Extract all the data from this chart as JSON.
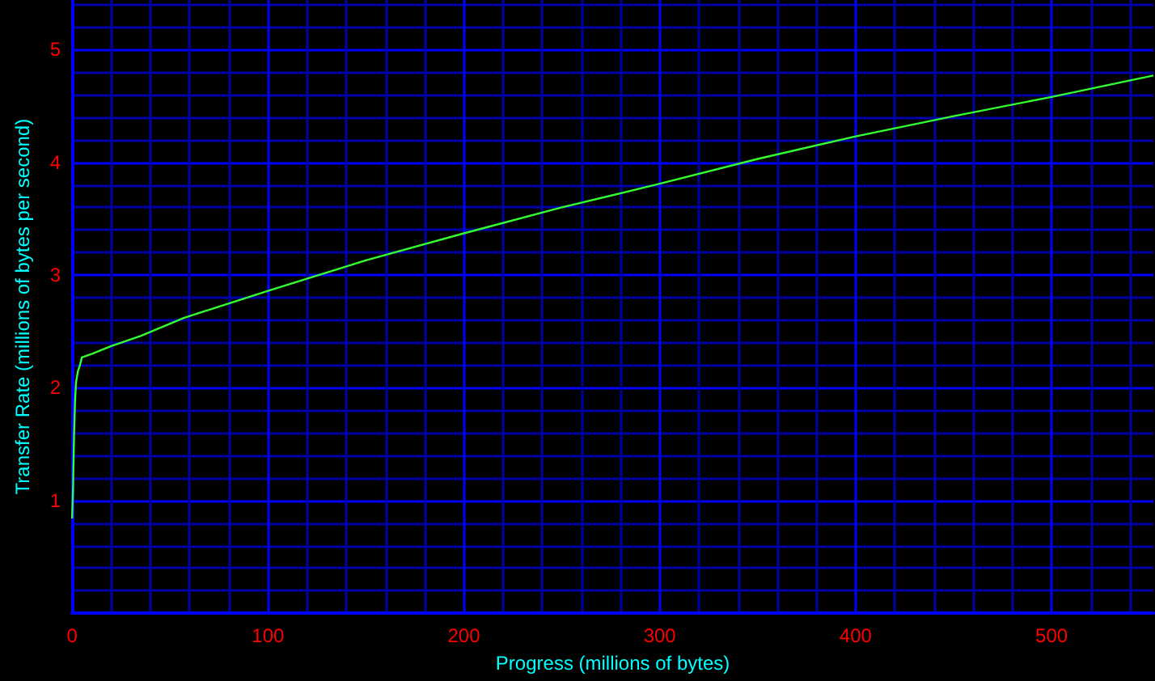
{
  "chart_data": {
    "type": "line",
    "xlabel": "Progress (millions of bytes)",
    "ylabel": "Transfer Rate (millions of bytes per second)",
    "x": [
      0,
      0.5,
      1,
      1.5,
      2,
      3,
      4,
      5,
      10,
      20,
      35,
      57,
      100,
      150,
      200,
      250,
      300,
      350,
      400,
      450,
      500,
      552
    ],
    "series": [
      {
        "color": "#33ff33",
        "values": [
          0.84,
          1.12,
          1.58,
          1.88,
          2.05,
          2.15,
          2.2,
          2.27,
          2.3,
          2.37,
          2.46,
          2.62,
          2.86,
          3.13,
          3.37,
          3.6,
          3.81,
          4.03,
          4.23,
          4.41,
          4.58,
          4.77
        ]
      }
    ],
    "xlim": [
      0,
      552
    ],
    "xticks": [
      0,
      {
        "value": 20,
        "label": null
      },
      {
        "value": 40,
        "label": null
      },
      {
        "value": 60,
        "label": null
      },
      {
        "value": 80,
        "label": null
      },
      100,
      {
        "value": 120,
        "label": null
      },
      {
        "value": 140,
        "label": null
      },
      {
        "value": 160,
        "label": null
      },
      {
        "value": 180,
        "label": null
      },
      200,
      {
        "value": 220,
        "label": null
      },
      {
        "value": 240,
        "label": null
      },
      {
        "value": 260,
        "label": null
      },
      {
        "value": 280,
        "label": null
      },
      300,
      {
        "value": 320,
        "label": null
      },
      {
        "value": 340,
        "label": null
      },
      {
        "value": 360,
        "label": null
      },
      {
        "value": 380,
        "label": null
      },
      400,
      {
        "value": 420,
        "label": null
      },
      {
        "value": 440,
        "label": null
      },
      {
        "value": 460,
        "label": null
      },
      {
        "value": 480,
        "label": null
      },
      500,
      {
        "value": 520,
        "label": null
      },
      {
        "value": 540,
        "label": null
      }
    ],
    "ylim": [
      0,
      5.44
    ],
    "yticks": [
      {
        "value": 0,
        "label": null
      },
      {
        "value": 0.2,
        "label": null
      },
      {
        "value": 0.4,
        "label": null
      },
      {
        "value": 0.6,
        "label": null
      },
      {
        "value": 0.8,
        "label": null
      },
      1,
      {
        "value": 1.2,
        "label": null
      },
      {
        "value": 1.4,
        "label": null
      },
      {
        "value": 1.6,
        "label": null
      },
      {
        "value": 1.8,
        "label": null
      },
      2,
      {
        "value": 2.2,
        "label": null
      },
      {
        "value": 2.4,
        "label": null
      },
      {
        "value": 2.6,
        "label": null
      },
      {
        "value": 2.8,
        "label": null
      },
      3,
      {
        "value": 3.2,
        "label": null
      },
      {
        "value": 3.4,
        "label": null
      },
      {
        "value": 3.6,
        "label": null
      },
      {
        "value": 3.8,
        "label": null
      },
      4,
      {
        "value": 4.2,
        "label": null
      },
      {
        "value": 4.4,
        "label": null
      },
      {
        "value": 4.6,
        "label": null
      },
      {
        "value": 4.8,
        "label": null
      },
      5,
      {
        "value": 5.2,
        "label": null
      },
      {
        "value": 5.4,
        "label": null
      }
    ],
    "grid": true,
    "marker": "none",
    "line_style": "solid"
  }
}
